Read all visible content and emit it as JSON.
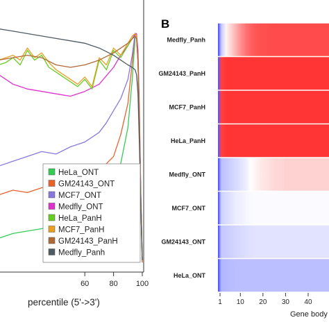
{
  "chart_data": [
    {
      "type": "line",
      "panel": "",
      "xlabel": "percentile (5'->3')",
      "ylabel": "",
      "xlim": [
        0,
        100
      ],
      "ylim": [
        0,
        1
      ],
      "xticks": [
        60,
        80,
        100
      ],
      "grid": false,
      "legend_placement": "bottom-right",
      "series": [
        {
          "name": "HeLa_ONT",
          "color": "#33cc55",
          "x": [
            0,
            10,
            20,
            30,
            40,
            50,
            60,
            70,
            80,
            85,
            90,
            93,
            95,
            96,
            97,
            98,
            99,
            100
          ],
          "y": [
            0.12,
            0.14,
            0.15,
            0.16,
            0.18,
            0.21,
            0.25,
            0.28,
            0.34,
            0.43,
            0.58,
            0.78,
            0.95,
            0.96,
            0.85,
            0.55,
            0.25,
            0.02
          ]
        },
        {
          "name": "GM24143_ONT",
          "color": "#e8622a",
          "x": [
            0,
            10,
            20,
            30,
            40,
            50,
            60,
            70,
            80,
            85,
            90,
            93,
            95,
            96,
            97,
            98,
            99,
            100
          ],
          "y": [
            0.3,
            0.32,
            0.31,
            0.33,
            0.34,
            0.36,
            0.38,
            0.4,
            0.46,
            0.55,
            0.68,
            0.85,
            0.97,
            0.96,
            0.88,
            0.55,
            0.25,
            0.02
          ]
        },
        {
          "name": "MCF7_ONT",
          "color": "#8877dd",
          "x": [
            0,
            10,
            20,
            30,
            40,
            50,
            60,
            70,
            75,
            80,
            85,
            90,
            93,
            95,
            96,
            97,
            98,
            99,
            100
          ],
          "y": [
            0.42,
            0.44,
            0.46,
            0.48,
            0.47,
            0.5,
            0.52,
            0.56,
            0.6,
            0.65,
            0.7,
            0.78,
            0.88,
            0.97,
            0.96,
            0.85,
            0.6,
            0.3,
            0.03
          ]
        },
        {
          "name": "Medfly_ONT",
          "color": "#dd33cc",
          "x": [
            0,
            5,
            10,
            20,
            30,
            40,
            50,
            60,
            70,
            80,
            85,
            90,
            93,
            95,
            96,
            97,
            98,
            99,
            100
          ],
          "y": [
            0.8,
            0.78,
            0.76,
            0.74,
            0.73,
            0.72,
            0.71,
            0.73,
            0.76,
            0.83,
            0.88,
            0.92,
            0.95,
            0.97,
            0.97,
            0.9,
            0.65,
            0.3,
            0.03
          ]
        },
        {
          "name": "HeLa_PanH",
          "color": "#66cc22",
          "x": [
            0,
            5,
            10,
            15,
            20,
            25,
            30,
            35,
            40,
            45,
            50,
            55,
            60,
            65,
            70,
            75,
            80,
            85,
            90,
            93,
            95,
            96,
            97,
            98,
            99,
            100
          ],
          "y": [
            0.84,
            0.85,
            0.87,
            0.84,
            0.9,
            0.86,
            0.88,
            0.83,
            0.81,
            0.79,
            0.77,
            0.75,
            0.78,
            0.74,
            0.86,
            0.82,
            0.9,
            0.87,
            0.92,
            0.95,
            0.96,
            0.95,
            0.85,
            0.6,
            0.28,
            0.03
          ]
        },
        {
          "name": "MCF7_PanH",
          "color": "#e8a020",
          "x": [
            0,
            5,
            10,
            15,
            20,
            25,
            30,
            35,
            40,
            45,
            50,
            55,
            60,
            65,
            70,
            75,
            80,
            85,
            90,
            93,
            95,
            96,
            97,
            98,
            99,
            100
          ],
          "y": [
            0.86,
            0.87,
            0.88,
            0.86,
            0.91,
            0.87,
            0.89,
            0.85,
            0.82,
            0.8,
            0.78,
            0.76,
            0.79,
            0.75,
            0.87,
            0.84,
            0.91,
            0.88,
            0.93,
            0.96,
            0.97,
            0.96,
            0.86,
            0.6,
            0.28,
            0.03
          ]
        },
        {
          "name": "GM24143_PanH",
          "color": "#b06a35",
          "x": [
            0,
            10,
            20,
            30,
            40,
            50,
            60,
            70,
            80,
            90,
            95,
            96,
            97,
            98,
            99,
            100
          ],
          "y": [
            0.86,
            0.87,
            0.88,
            0.87,
            0.84,
            0.83,
            0.84,
            0.86,
            0.89,
            0.93,
            0.96,
            0.95,
            0.86,
            0.6,
            0.28,
            0.03
          ]
        },
        {
          "name": "Medfly_Panh",
          "color": "#505a62",
          "x": [
            0,
            10,
            20,
            30,
            40,
            50,
            60,
            70,
            80,
            85,
            90,
            93,
            95,
            96,
            97,
            98,
            99,
            100
          ],
          "y": [
            0.99,
            0.98,
            0.97,
            0.96,
            0.95,
            0.94,
            0.93,
            0.91,
            0.88,
            0.86,
            0.84,
            0.83,
            0.82,
            0.8,
            0.72,
            0.5,
            0.25,
            0.03
          ]
        }
      ]
    },
    {
      "type": "heatmap",
      "panel": "B",
      "xlabel": "Gene body",
      "ylabel": "",
      "xticks": [
        1,
        10,
        20,
        30,
        40
      ],
      "xlim": [
        1,
        48
      ],
      "rows": [
        {
          "label": "Medfly_Panh",
          "profile": [
            -1.0,
            -0.3,
            0.05,
            0.2,
            0.35,
            0.5,
            0.62,
            0.7,
            0.75,
            0.78,
            0.78,
            0.8,
            0.8,
            0.8,
            0.8,
            0.8,
            0.8,
            0.8,
            0.8,
            0.8,
            0.8,
            0.8,
            0.8,
            0.8
          ]
        },
        {
          "label": "GM24143_PanH",
          "profile": [
            -0.9,
            0.85,
            0.9,
            0.9,
            0.9,
            0.9,
            0.9,
            0.9,
            0.9,
            0.9,
            0.9,
            0.9,
            0.9,
            0.9,
            0.9,
            0.9,
            0.9,
            0.9,
            0.9,
            0.9,
            0.9,
            0.9,
            0.9,
            0.9
          ]
        },
        {
          "label": "MCF7_PanH",
          "profile": [
            -0.9,
            0.85,
            0.9,
            0.9,
            0.9,
            0.9,
            0.9,
            0.9,
            0.9,
            0.9,
            0.9,
            0.9,
            0.9,
            0.9,
            0.9,
            0.9,
            0.9,
            0.9,
            0.9,
            0.9,
            0.9,
            0.9,
            0.9,
            0.9
          ]
        },
        {
          "label": "HeLa_PanH",
          "profile": [
            -0.9,
            0.85,
            0.9,
            0.9,
            0.9,
            0.9,
            0.9,
            0.9,
            0.9,
            0.9,
            0.9,
            0.9,
            0.9,
            0.9,
            0.9,
            0.9,
            0.9,
            0.9,
            0.9,
            0.9,
            0.9,
            0.9,
            0.9,
            0.9
          ]
        },
        {
          "label": "Medfly_ONT",
          "profile": [
            -1.0,
            -0.35,
            -0.3,
            -0.25,
            -0.2,
            -0.15,
            -0.1,
            0.0,
            0.05,
            0.1,
            0.12,
            0.15,
            0.18,
            0.18,
            0.2,
            0.2,
            0.2,
            0.2,
            0.2,
            0.2,
            0.2,
            0.2,
            0.2,
            0.2
          ]
        },
        {
          "label": "MCF7_ONT",
          "profile": [
            -1.0,
            -0.25,
            -0.2,
            -0.15,
            -0.1,
            -0.08,
            -0.05,
            -0.03,
            -0.02,
            -0.02,
            -0.02,
            -0.02,
            -0.02,
            -0.02,
            -0.02,
            -0.02,
            -0.02,
            -0.02,
            -0.02,
            -0.02,
            -0.02,
            -0.02,
            -0.02,
            -0.02
          ]
        },
        {
          "label": "GM24143_ONT",
          "profile": [
            -1.0,
            -0.3,
            -0.28,
            -0.25,
            -0.22,
            -0.2,
            -0.18,
            -0.16,
            -0.15,
            -0.15,
            -0.15,
            -0.15,
            -0.15,
            -0.15,
            -0.15,
            -0.15,
            -0.15,
            -0.15,
            -0.15,
            -0.15,
            -0.15,
            -0.15,
            -0.15,
            -0.15
          ]
        },
        {
          "label": "HeLa_ONT",
          "profile": [
            -1.0,
            -0.4,
            -0.38,
            -0.36,
            -0.35,
            -0.35,
            -0.35,
            -0.35,
            -0.35,
            -0.35,
            -0.35,
            -0.35,
            -0.35,
            -0.35,
            -0.35,
            -0.35,
            -0.35,
            -0.35,
            -0.35,
            -0.35,
            -0.35,
            -0.35,
            -0.35,
            -0.35
          ]
        }
      ]
    }
  ]
}
